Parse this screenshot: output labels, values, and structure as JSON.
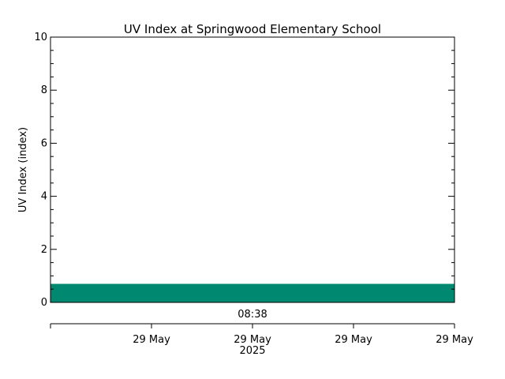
{
  "chart_data": {
    "type": "area",
    "title": "UV Index at Springwood Elementary School",
    "ylabel": "UV Index (index)",
    "xlabel": "",
    "ylim": [
      0,
      10
    ],
    "y_ticks": [
      "0",
      "2",
      "4",
      "6",
      "8",
      "10"
    ],
    "y_tick_values": [
      0,
      2,
      4,
      6,
      8,
      10
    ],
    "time_label": "08:38",
    "x_tick_labels": [
      "29 May",
      "29 May",
      "29 May",
      "29 May"
    ],
    "year_label": "2025",
    "series": [
      {
        "values": [
          0.7,
          0.7
        ]
      }
    ],
    "fill_color": "#008870",
    "grid": false,
    "legend": "none"
  }
}
